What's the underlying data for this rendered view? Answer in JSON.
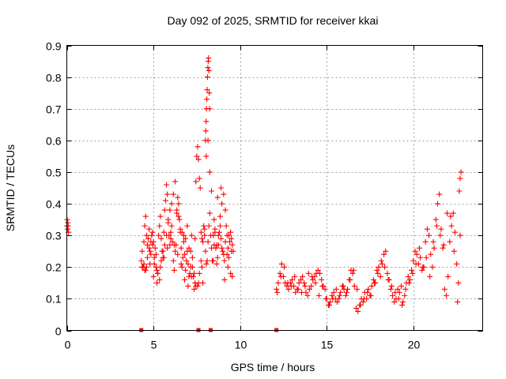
{
  "chart_data": {
    "type": "scatter",
    "title": "Day 092 of 2025, SRMTID for receiver kkai",
    "xlabel": "GPS time / hours",
    "ylabel": "SRMTID / TECUs",
    "xlim": [
      0,
      24
    ],
    "ylim": [
      0,
      0.9
    ],
    "xticks": [
      0,
      5,
      10,
      15,
      20
    ],
    "yticks": [
      0,
      0.1,
      0.2,
      0.3,
      0.4,
      0.5,
      0.6,
      0.7,
      0.8,
      0.9
    ],
    "xtick_labels": [
      "0",
      "5",
      "10",
      "15",
      "20"
    ],
    "ytick_labels": [
      "0",
      "0.1",
      "0.2",
      "0.3",
      "0.4",
      "0.5",
      "0.6",
      "0.7",
      "0.8",
      "0.9"
    ],
    "grid": true,
    "marker": "+",
    "color": "#ff0000",
    "series": [
      {
        "name": "SRMTID",
        "x": [
          0.0,
          0.02,
          0.04,
          0.06,
          0.08,
          0.1,
          4.3,
          4.35,
          4.4,
          4.45,
          4.5,
          4.55,
          4.6,
          4.65,
          4.7,
          4.75,
          4.8,
          4.85,
          4.9,
          4.95,
          5.0,
          5.05,
          5.1,
          5.15,
          5.2,
          5.25,
          5.3,
          5.35,
          5.4,
          5.45,
          5.5,
          5.55,
          5.6,
          5.65,
          5.7,
          5.75,
          5.8,
          5.85,
          5.9,
          5.95,
          6.0,
          6.05,
          6.1,
          6.15,
          6.2,
          6.25,
          6.3,
          6.35,
          6.4,
          6.45,
          6.5,
          6.55,
          6.6,
          6.65,
          6.7,
          6.75,
          6.8,
          6.85,
          6.9,
          6.95,
          7.0,
          7.05,
          7.1,
          7.15,
          7.2,
          7.25,
          7.3,
          7.35,
          7.4,
          7.45,
          7.5,
          7.55,
          7.6,
          7.65,
          7.7,
          7.75,
          7.8,
          7.85,
          7.9,
          7.95,
          8.0,
          8.05,
          8.1,
          8.15,
          8.2,
          8.25,
          8.3,
          8.35,
          8.4,
          8.45,
          8.5,
          8.55,
          8.6,
          8.65,
          8.7,
          8.75,
          8.8,
          8.85,
          8.9,
          8.95,
          9.0,
          9.05,
          9.1,
          9.15,
          9.2,
          9.25,
          9.3,
          9.35,
          9.4,
          9.45,
          9.5,
          9.55,
          9.6,
          4.4,
          4.5,
          4.6,
          4.8,
          5.0,
          5.2,
          5.4,
          5.6,
          5.8,
          6.0,
          6.2,
          6.4,
          6.6,
          6.8,
          7.0,
          7.2,
          7.4,
          7.6,
          7.8,
          8.0,
          8.02,
          8.04,
          8.06,
          8.08,
          8.1,
          8.12,
          8.14,
          8.16,
          8.18,
          8.2,
          8.22,
          8.24,
          8.5,
          8.7,
          8.9,
          9.1,
          9.3,
          9.5,
          4.35,
          4.45,
          4.55,
          4.65,
          4.75,
          4.85,
          4.95,
          5.05,
          5.15,
          5.25,
          5.35,
          5.45,
          5.55,
          5.65,
          5.75,
          5.85,
          5.95,
          6.05,
          6.15,
          6.25,
          6.35,
          6.45,
          6.55,
          6.65,
          6.75,
          6.85,
          6.95,
          7.05,
          7.15,
          7.25,
          7.35,
          7.45,
          7.55,
          7.65,
          7.75,
          7.85,
          7.95,
          8.05,
          8.15,
          8.25,
          8.35,
          8.45,
          8.55,
          8.65,
          8.75,
          8.85,
          8.95,
          9.05,
          9.15,
          9.25,
          9.35,
          9.45,
          9.55,
          12.1,
          12.2,
          12.3,
          12.4,
          12.5,
          12.6,
          12.7,
          12.8,
          12.9,
          13.0,
          13.1,
          13.2,
          13.3,
          13.4,
          13.5,
          13.6,
          13.7,
          13.8,
          13.9,
          14.0,
          14.1,
          14.2,
          14.3,
          14.4,
          14.5,
          14.6,
          14.7,
          14.8,
          14.9,
          15.0,
          15.1,
          15.2,
          15.3,
          15.4,
          15.5,
          15.6,
          15.7,
          15.8,
          15.9,
          16.0,
          16.1,
          16.2,
          16.3,
          16.4,
          16.5,
          16.6,
          16.7,
          16.8,
          16.9,
          17.0,
          17.1,
          17.2,
          17.3,
          17.4,
          17.5,
          17.6,
          17.7,
          17.8,
          17.9,
          18.0,
          18.1,
          18.2,
          18.3,
          18.4,
          18.5,
          18.6,
          18.7,
          18.8,
          18.9,
          19.0,
          19.1,
          19.2,
          19.3,
          19.4,
          19.5,
          19.6,
          19.7,
          19.8,
          19.9,
          20.0,
          20.1,
          20.2,
          20.3,
          20.4,
          20.5,
          20.6,
          20.7,
          20.8,
          20.9,
          21.0,
          21.1,
          21.2,
          21.3,
          21.4,
          21.5,
          21.6,
          21.7,
          21.8,
          21.9,
          22.0,
          22.1,
          22.2,
          22.3,
          22.4,
          22.5,
          22.6,
          22.7,
          12.15,
          12.35,
          12.55,
          12.75,
          12.95,
          13.15,
          13.35,
          13.55,
          13.75,
          13.95,
          14.15,
          14.35,
          14.55,
          14.75,
          14.95,
          15.15,
          15.35,
          15.55,
          15.75,
          15.95,
          16.15,
          16.35,
          16.55,
          16.75,
          16.95,
          17.15,
          17.35,
          17.55,
          17.75,
          17.95,
          18.15,
          18.35,
          18.55,
          18.75,
          18.95,
          19.15,
          19.35,
          19.55,
          19.75,
          19.95,
          20.15,
          20.35,
          20.55,
          20.75,
          20.95,
          21.15,
          21.35,
          21.55,
          21.75,
          21.95,
          22.15,
          22.35,
          22.55,
          22.65,
          22.7,
          22.75
        ],
        "y": [
          0.33,
          0.35,
          0.32,
          0.34,
          0.33,
          0.31,
          0.22,
          0.25,
          0.2,
          0.28,
          0.33,
          0.36,
          0.3,
          0.27,
          0.29,
          0.32,
          0.25,
          0.24,
          0.3,
          0.31,
          0.28,
          0.21,
          0.26,
          0.24,
          0.19,
          0.18,
          0.3,
          0.33,
          0.36,
          0.29,
          0.25,
          0.23,
          0.31,
          0.38,
          0.41,
          0.46,
          0.43,
          0.35,
          0.3,
          0.27,
          0.29,
          0.33,
          0.28,
          0.22,
          0.19,
          0.25,
          0.27,
          0.38,
          0.42,
          0.4,
          0.35,
          0.31,
          0.26,
          0.2,
          0.23,
          0.28,
          0.24,
          0.19,
          0.22,
          0.25,
          0.21,
          0.17,
          0.18,
          0.25,
          0.3,
          0.23,
          0.17,
          0.13,
          0.29,
          0.47,
          0.55,
          0.58,
          0.54,
          0.48,
          0.45,
          0.31,
          0.29,
          0.28,
          0.33,
          0.3,
          0.25,
          0.21,
          0.22,
          0.28,
          0.33,
          0.37,
          0.3,
          0.26,
          0.22,
          0.22,
          0.27,
          0.31,
          0.26,
          0.21,
          0.23,
          0.27,
          0.31,
          0.33,
          0.29,
          0.26,
          0.25,
          0.24,
          0.22,
          0.28,
          0.33,
          0.3,
          0.26,
          0.23,
          0.28,
          0.31,
          0.29,
          0.27,
          0.25,
          0.2,
          0.19,
          0.2,
          0.21,
          0.17,
          0.15,
          0.2,
          0.23,
          0.26,
          0.31,
          0.27,
          0.24,
          0.21,
          0.16,
          0.14,
          0.17,
          0.15,
          0.15,
          0.2,
          0.6,
          0.63,
          0.66,
          0.7,
          0.73,
          0.76,
          0.8,
          0.83,
          0.85,
          0.86,
          0.82,
          0.75,
          0.7,
          0.35,
          0.42,
          0.45,
          0.16,
          0.2,
          0.25,
          0.2,
          0.21,
          0.19,
          0.23,
          0.26,
          0.28,
          0.27,
          0.23,
          0.2,
          0.18,
          0.16,
          0.22,
          0.25,
          0.27,
          0.3,
          0.34,
          0.38,
          0.4,
          0.43,
          0.47,
          0.37,
          0.36,
          0.32,
          0.31,
          0.3,
          0.29,
          0.33,
          0.26,
          0.2,
          0.2,
          0.18,
          0.14,
          0.14,
          0.18,
          0.22,
          0.15,
          0.32,
          0.55,
          0.6,
          0.5,
          0.44,
          0.3,
          0.32,
          0.27,
          0.3,
          0.36,
          0.4,
          0.43,
          0.38,
          0.24,
          0.3,
          0.18,
          0.17,
          0.13,
          0.15,
          0.18,
          0.21,
          0.17,
          0.15,
          0.14,
          0.13,
          0.15,
          0.16,
          0.14,
          0.12,
          0.13,
          0.15,
          0.16,
          0.17,
          0.15,
          0.12,
          0.11,
          0.13,
          0.14,
          0.16,
          0.17,
          0.18,
          0.19,
          0.18,
          0.16,
          0.14,
          0.13,
          0.1,
          0.08,
          0.09,
          0.11,
          0.12,
          0.1,
          0.09,
          0.1,
          0.12,
          0.14,
          0.13,
          0.11,
          0.13,
          0.16,
          0.19,
          0.18,
          0.14,
          0.07,
          0.06,
          0.08,
          0.1,
          0.09,
          0.12,
          0.1,
          0.13,
          0.11,
          0.14,
          0.16,
          0.15,
          0.19,
          0.2,
          0.17,
          0.21,
          0.24,
          0.25,
          0.18,
          0.16,
          0.13,
          0.11,
          0.09,
          0.1,
          0.13,
          0.12,
          0.14,
          0.09,
          0.11,
          0.15,
          0.17,
          0.16,
          0.19,
          0.22,
          0.25,
          0.24,
          0.21,
          0.23,
          0.19,
          0.2,
          0.28,
          0.32,
          0.3,
          0.24,
          0.2,
          0.26,
          0.35,
          0.4,
          0.43,
          0.32,
          0.26,
          0.13,
          0.11,
          0.17,
          0.28,
          0.33,
          0.37,
          0.31,
          0.21,
          0.15,
          0.3,
          0.12,
          0.17,
          0.2,
          0.15,
          0.14,
          0.17,
          0.13,
          0.12,
          0.14,
          0.18,
          0.17,
          0.15,
          0.11,
          0.14,
          0.1,
          0.08,
          0.1,
          0.13,
          0.11,
          0.14,
          0.12,
          0.16,
          0.19,
          0.13,
          0.08,
          0.1,
          0.12,
          0.11,
          0.15,
          0.18,
          0.22,
          0.2,
          0.16,
          0.14,
          0.12,
          0.1,
          0.08,
          0.13,
          0.15,
          0.18,
          0.21,
          0.26,
          0.2,
          0.23,
          0.17,
          0.28,
          0.33,
          0.3,
          0.27,
          0.37,
          0.36,
          0.25,
          0.09,
          0.44,
          0.48,
          0.5
        ]
      },
      {
        "name": "data gaps",
        "marker": "square",
        "x": [
          4.3,
          7.6,
          8.3,
          12.1
        ],
        "y": [
          0,
          0,
          0,
          0
        ]
      }
    ]
  }
}
